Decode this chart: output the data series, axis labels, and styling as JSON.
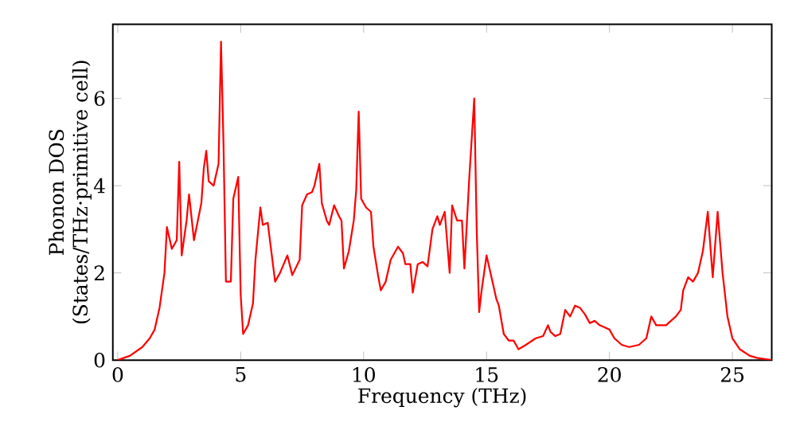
{
  "chart_data": {
    "type": "line",
    "xlabel": "Frequency (THz)",
    "ylabel": "Phonon DOS\n(States/THz·primitive cell)",
    "xlim": [
      -0.2,
      26.6
    ],
    "ylim": [
      0,
      7.7
    ],
    "xticks": [
      0,
      5,
      10,
      15,
      20,
      25
    ],
    "yticks": [
      0,
      2,
      4,
      6
    ],
    "grid": false,
    "series": [
      {
        "color": "#ff0000",
        "x": [
          0,
          0.5,
          1.0,
          1.3,
          1.5,
          1.7,
          1.9,
          2.0,
          2.2,
          2.4,
          2.5,
          2.6,
          2.8,
          2.9,
          3.1,
          3.4,
          3.5,
          3.6,
          3.7,
          3.9,
          4.1,
          4.2,
          4.3,
          4.4,
          4.6,
          4.7,
          4.9,
          5.0,
          5.1,
          5.3,
          5.5,
          5.6,
          5.8,
          5.9,
          6.1,
          6.4,
          6.6,
          6.9,
          7.1,
          7.4,
          7.5,
          7.7,
          7.9,
          8.0,
          8.2,
          8.3,
          8.5,
          8.6,
          8.8,
          9.0,
          9.1,
          9.2,
          9.4,
          9.6,
          9.7,
          9.8,
          9.9,
          10.1,
          10.3,
          10.4,
          10.6,
          10.7,
          10.9,
          11.1,
          11.4,
          11.6,
          11.7,
          11.9,
          12.0,
          12.2,
          12.4,
          12.6,
          12.8,
          13.0,
          13.1,
          13.3,
          13.5,
          13.6,
          13.8,
          14.0,
          14.1,
          14.3,
          14.5,
          14.6,
          14.7,
          14.8,
          15.0,
          15.2,
          15.4,
          15.5,
          15.7,
          15.9,
          16.1,
          16.3,
          16.6,
          17.0,
          17.3,
          17.5,
          17.6,
          17.8,
          18.0,
          18.2,
          18.4,
          18.6,
          18.8,
          19.0,
          19.2,
          19.4,
          19.6,
          19.8,
          20.0,
          20.2,
          20.5,
          20.8,
          21.2,
          21.5,
          21.7,
          21.9,
          22.3,
          22.7,
          22.9,
          23.0,
          23.2,
          23.4,
          23.6,
          23.8,
          24.0,
          24.2,
          24.4,
          24.6,
          24.8,
          25.0,
          25.3,
          25.7,
          26.0,
          26.6
        ],
        "values": [
          0,
          0.1,
          0.3,
          0.5,
          0.7,
          1.2,
          2.0,
          3.05,
          2.55,
          2.75,
          4.55,
          2.4,
          3.2,
          3.8,
          2.75,
          3.6,
          4.4,
          4.8,
          4.1,
          4.0,
          4.5,
          7.3,
          5.0,
          1.8,
          1.8,
          3.7,
          4.2,
          1.5,
          0.6,
          0.8,
          1.3,
          2.3,
          3.5,
          3.1,
          3.15,
          1.8,
          2.0,
          2.4,
          1.95,
          2.3,
          3.55,
          3.8,
          3.85,
          4.0,
          4.5,
          3.6,
          3.2,
          3.1,
          3.55,
          3.3,
          3.2,
          2.1,
          2.5,
          3.2,
          3.9,
          5.7,
          3.7,
          3.5,
          3.4,
          2.6,
          1.9,
          1.6,
          1.8,
          2.3,
          2.6,
          2.45,
          2.2,
          2.2,
          1.55,
          2.2,
          2.25,
          2.15,
          3.0,
          3.3,
          3.1,
          3.4,
          2.0,
          3.55,
          3.2,
          3.2,
          2.1,
          4.2,
          6.0,
          3.0,
          1.1,
          1.6,
          2.4,
          1.9,
          1.4,
          1.25,
          0.6,
          0.45,
          0.45,
          0.25,
          0.35,
          0.5,
          0.55,
          0.8,
          0.65,
          0.55,
          0.6,
          1.15,
          1.0,
          1.25,
          1.2,
          1.05,
          0.85,
          0.9,
          0.8,
          0.75,
          0.7,
          0.5,
          0.35,
          0.3,
          0.35,
          0.5,
          1.0,
          0.8,
          0.8,
          1.0,
          1.15,
          1.6,
          1.9,
          1.8,
          2.0,
          2.5,
          3.4,
          1.9,
          3.4,
          2.0,
          1.0,
          0.5,
          0.25,
          0.1,
          0.05,
          0
        ]
      }
    ]
  }
}
